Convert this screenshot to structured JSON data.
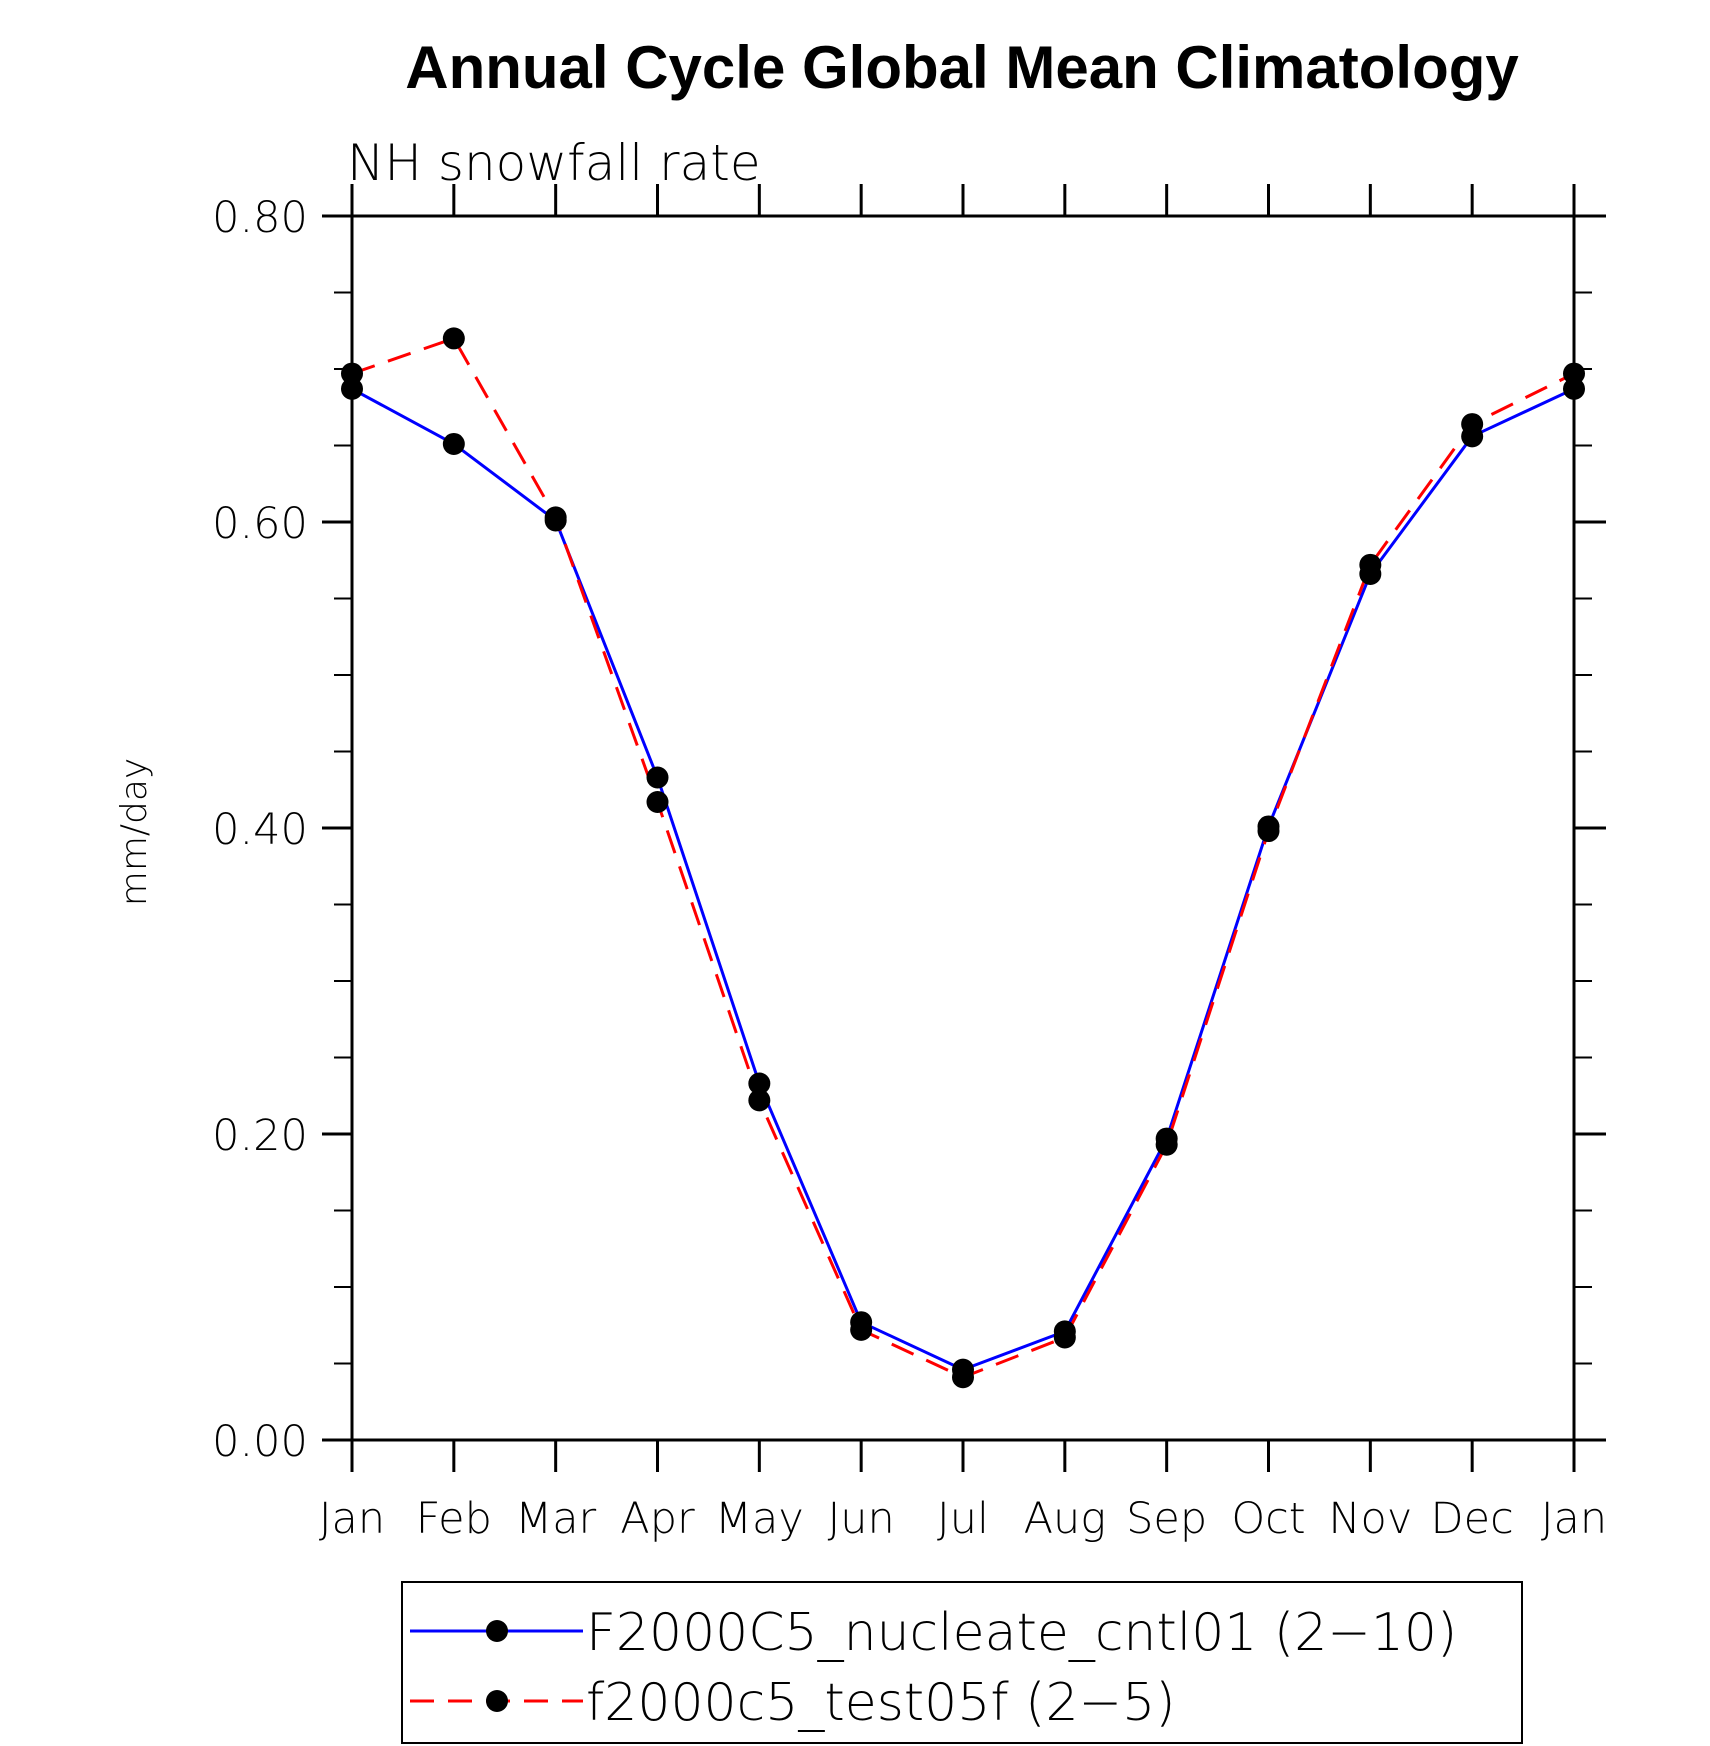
{
  "chart_data": {
    "type": "line",
    "title": "Annual Cycle Global Mean Climatology",
    "subtitle": "NH snowfall rate",
    "xlabel": "",
    "ylabel": "mm/day",
    "categories": [
      "Jan",
      "Feb",
      "Mar",
      "Apr",
      "May",
      "Jun",
      "Jul",
      "Aug",
      "Sep",
      "Oct",
      "Nov",
      "Dec",
      "Jan"
    ],
    "ylim": [
      0,
      0.8
    ],
    "yticks": [
      0.0,
      0.2,
      0.4,
      0.6,
      0.8
    ],
    "ytick_labels": [
      "0.00",
      "0.20",
      "0.40",
      "0.60",
      "0.80"
    ],
    "grid": false,
    "legend_position": "bottom",
    "series": [
      {
        "name": "F2000C5_nucleate_cntl01 (2−10)",
        "color": "#0000ff",
        "line_style": "solid",
        "marker": "filled-circle",
        "values": [
          0.687,
          0.651,
          0.601,
          0.433,
          0.233,
          0.077,
          0.046,
          0.071,
          0.197,
          0.401,
          0.566,
          0.656,
          0.687
        ]
      },
      {
        "name": "f2000c5_test05f (2−5)",
        "color": "#ff0000",
        "line_style": "dashed",
        "marker": "filled-circle",
        "values": [
          0.697,
          0.72,
          0.603,
          0.417,
          0.222,
          0.072,
          0.041,
          0.067,
          0.193,
          0.398,
          0.572,
          0.664,
          0.697
        ]
      }
    ]
  }
}
